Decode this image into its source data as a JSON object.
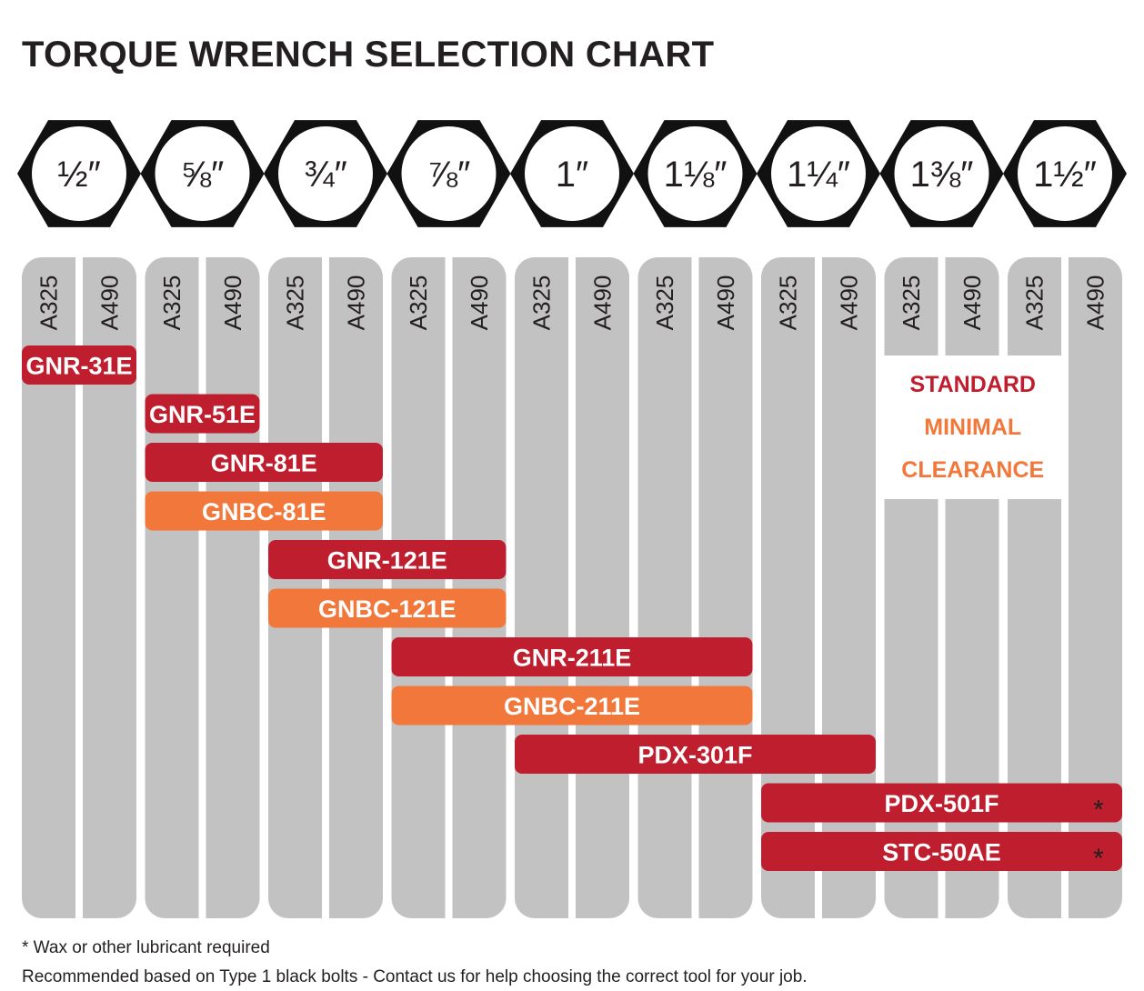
{
  "chart_data": {
    "type": "table",
    "title": "TORQUE WRENCH SELECTION CHART",
    "bolt_sizes": [
      "1⁄₂″",
      "5⁄₈″",
      "3⁄₄″",
      "7⁄₈″",
      "1″",
      "1 1⁄₈″",
      "1 1⁄₄″",
      "1 3⁄₈″",
      "1 1⁄₂″"
    ],
    "bolt_sizes_display": [
      "½″",
      "⅝″",
      "¾″",
      "⅞″",
      "1″",
      "1⅛″",
      "1¼″",
      "1⅜″",
      "1½″"
    ],
    "grades": [
      "A325",
      "A490"
    ],
    "tools": [
      {
        "name": "GNR-31E",
        "type": "standard",
        "start": 0,
        "end": 2,
        "asterisk": false
      },
      {
        "name": "GNR-51E",
        "type": "standard",
        "start": 2,
        "end": 4,
        "asterisk": false
      },
      {
        "name": "GNR-81E",
        "type": "standard",
        "start": 2,
        "end": 6,
        "asterisk": false
      },
      {
        "name": "GNBC-81E",
        "type": "minimal",
        "start": 2,
        "end": 6,
        "asterisk": false
      },
      {
        "name": "GNR-121E",
        "type": "standard",
        "start": 4,
        "end": 8,
        "asterisk": false
      },
      {
        "name": "GNBC-121E",
        "type": "minimal",
        "start": 4,
        "end": 8,
        "asterisk": false
      },
      {
        "name": "GNR-211E",
        "type": "standard",
        "start": 6,
        "end": 12,
        "asterisk": false
      },
      {
        "name": "GNBC-211E",
        "type": "minimal",
        "start": 6,
        "end": 12,
        "asterisk": false
      },
      {
        "name": "PDX-301F",
        "type": "standard",
        "start": 8,
        "end": 14,
        "asterisk": false
      },
      {
        "name": "PDX-501F",
        "type": "standard",
        "start": 12,
        "end": 18,
        "asterisk": true
      },
      {
        "name": "STC-50AE",
        "type": "standard",
        "start": 12,
        "end": 18,
        "asterisk": true
      }
    ],
    "asterisk_symbol": "*",
    "legend": {
      "standard": "STANDARD",
      "minimal_line1": "MINIMAL",
      "minimal_line2": "CLEARANCE"
    },
    "colors": {
      "standard": "#bf1e2e",
      "minimal": "#f2773b",
      "hex": "#111111",
      "column": "#c2c2c2",
      "text": "#231f20"
    }
  },
  "notes": {
    "asterisk_note": "* Wax or other lubricant required",
    "recommendation": "Recommended based on Type 1 black bolts - Contact us for help choosing the correct tool for your job."
  }
}
